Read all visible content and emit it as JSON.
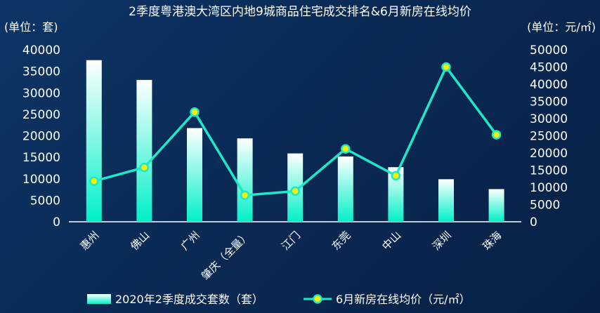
{
  "chart_data": {
    "type": "bar",
    "title": "2季度粤港澳大湾区内地9城商品住宅成交排名&6月新房在线均价",
    "y_left_unit": "(单位：套)",
    "y_right_unit": "(单位：元/㎡)",
    "categories": [
      "惠州",
      "佛山",
      "广州",
      "肇庆（全量）",
      "江门",
      "东莞",
      "中山",
      "深圳",
      "珠海"
    ],
    "y_left_range": [
      0,
      40000
    ],
    "y_left_ticks": [
      "0",
      "5000",
      "10000",
      "15000",
      "20000",
      "25000",
      "30000",
      "35000",
      "40000"
    ],
    "y_right_range": [
      0,
      50000
    ],
    "y_right_ticks": [
      "0",
      "5000",
      "10000",
      "15000",
      "20000",
      "25000",
      "30000",
      "35000",
      "40000",
      "45000",
      "50000"
    ],
    "grid": false,
    "legend_position": "bottom",
    "series": [
      {
        "name": "2020年2季度成交套数（套）",
        "type": "bar",
        "axis": "left",
        "values": [
          37600,
          33000,
          21800,
          19400,
          15900,
          15200,
          12700,
          9900,
          7600
        ]
      },
      {
        "name": "6月新房在线均价（元/㎡）",
        "type": "line",
        "axis": "right",
        "values": [
          11800,
          15800,
          31900,
          7700,
          8900,
          21200,
          13400,
          45000,
          25300
        ]
      }
    ],
    "colors": {
      "bar_top": "#ffffff",
      "bar_bottom": "#00f0c8",
      "line": "#1de9c9",
      "marker_fill": "#f5f000",
      "text": "#ffffff"
    }
  }
}
